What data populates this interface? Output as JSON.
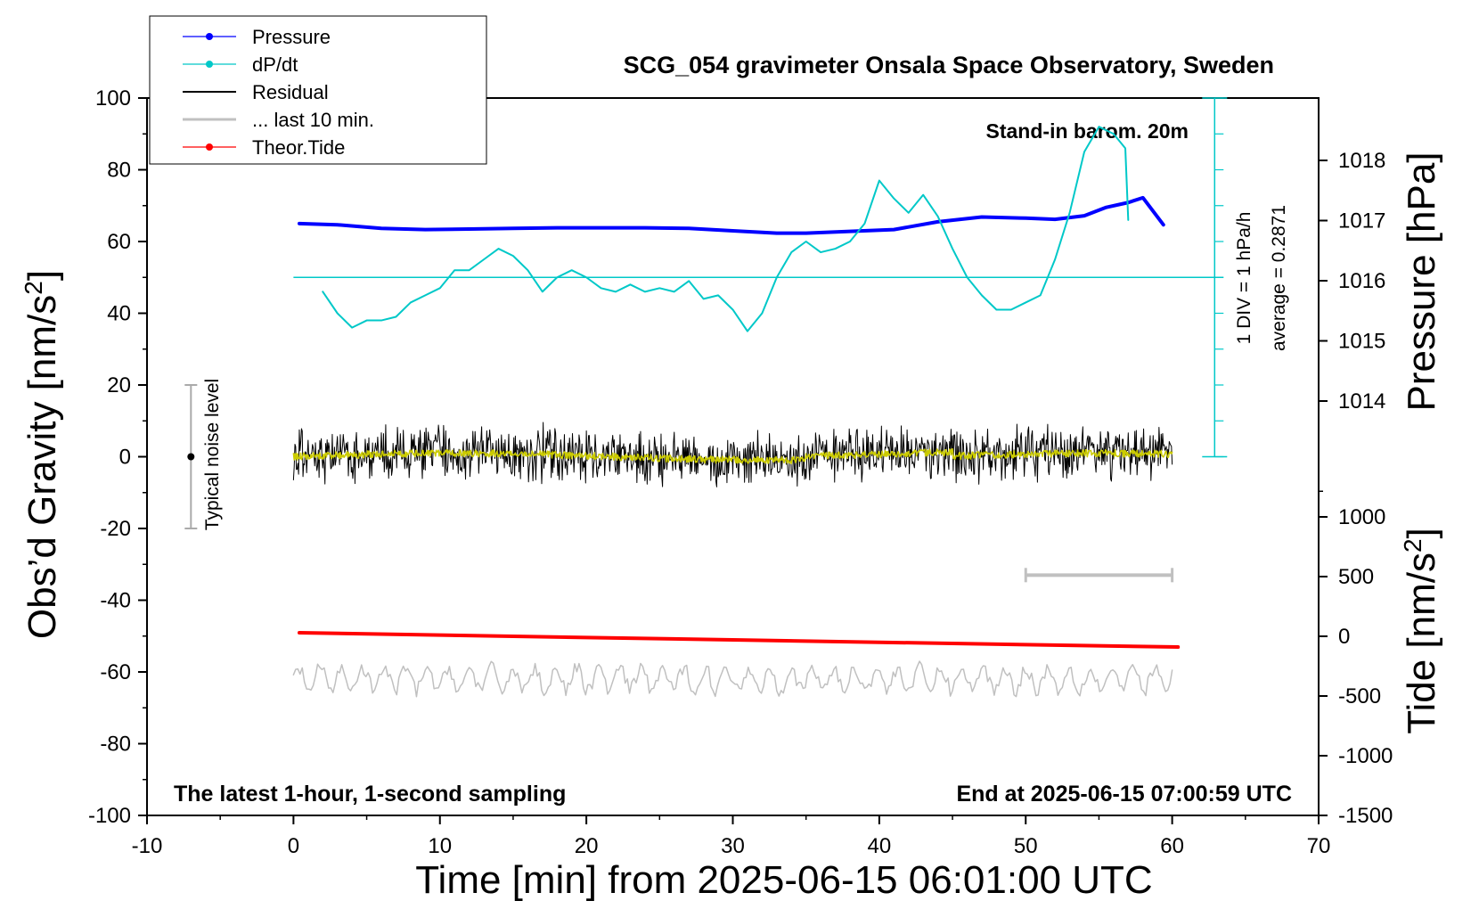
{
  "chart_data": {
    "type": "line",
    "title": "SCG_054 gravimeter Onsala Space Observatory, Sweden",
    "xlabel": "Time [min] from 2025-06-15 06:01:00 UTC",
    "ylabel_left": "Obs’d Gravity [nm/s²]",
    "ylabel_pressure": "Pressure [hPa]",
    "ylabel_tide": "Tide [nm/s²]",
    "xlim": [
      -10,
      70
    ],
    "ylim": [
      -100,
      100
    ],
    "pressure_lim": [
      1012,
      1018.8
    ],
    "tide_lim": [
      -1500,
      1000
    ],
    "grid": false,
    "legend_position": "top-left",
    "x_ticks": [
      -10,
      0,
      10,
      20,
      30,
      40,
      50,
      60,
      70
    ],
    "y_ticks": [
      100,
      80,
      60,
      40,
      20,
      0,
      -20,
      -40,
      -60,
      -80,
      -100
    ],
    "pressure_ticks": [
      1018,
      1017,
      1016,
      1015,
      1014
    ],
    "tide_ticks": [
      1000,
      500,
      0,
      -500,
      -1000,
      -1500
    ],
    "annotations": {
      "stand_in": "Stand-in barom. 20m",
      "div": "1 DIV = 1 hPa/h",
      "average": "average = 0.2871",
      "noise": "Typical noise level",
      "latest": "The latest 1-hour, 1-second sampling",
      "end": "End at 2025-06-15 07:00:59 UTC"
    },
    "legend": [
      {
        "name": "Pressure",
        "color": "#0000ff",
        "marker": true
      },
      {
        "name": "dP/dt",
        "color": "#00c8c8",
        "marker": true
      },
      {
        "name": "Residual",
        "color": "#000000",
        "marker": false
      },
      {
        "name": "... last 10 min.",
        "color": "#c0c0c0",
        "marker": false
      },
      {
        "name": "Theor.Tide",
        "color": "#ff0000",
        "marker": true
      }
    ],
    "series": [
      {
        "name": "Pressure",
        "axis": "pressure",
        "color": "#0000ff",
        "x": [
          0.4,
          3,
          6,
          9,
          12,
          15,
          18,
          21,
          24,
          27,
          30,
          33,
          35,
          38,
          41,
          44,
          47,
          50,
          52,
          54,
          55.5,
          57,
          58,
          59.4
        ],
        "values": [
          1016.95,
          1016.93,
          1016.87,
          1016.85,
          1016.86,
          1016.87,
          1016.88,
          1016.88,
          1016.88,
          1016.87,
          1016.83,
          1016.79,
          1016.79,
          1016.82,
          1016.85,
          1016.98,
          1017.06,
          1017.04,
          1017.02,
          1017.08,
          1017.22,
          1017.3,
          1017.38,
          1016.93
        ]
      },
      {
        "name": "dP/dt",
        "axis": "gravity",
        "color": "#00c8c8",
        "x": [
          2,
          3,
          4,
          5,
          6,
          7,
          8,
          9,
          10,
          11,
          12,
          13,
          14,
          15,
          16,
          17,
          18,
          19,
          20,
          21,
          22,
          23,
          24,
          25,
          26,
          27,
          28,
          29,
          30,
          31,
          32,
          33,
          34,
          35,
          36,
          37,
          38,
          39,
          40,
          41,
          42,
          43,
          44,
          45,
          46,
          47,
          48,
          49,
          50,
          51,
          52,
          53,
          54,
          55,
          56,
          56.8,
          57
        ],
        "values": [
          46,
          40,
          36,
          38,
          38,
          39,
          43,
          45,
          47,
          52,
          52,
          55,
          58,
          56,
          52,
          46,
          50,
          52,
          50,
          47,
          46,
          48,
          46,
          47,
          46,
          49,
          44,
          45,
          41,
          35,
          40,
          50,
          57,
          60,
          57,
          58,
          60,
          65,
          77,
          72,
          68,
          73,
          67,
          58,
          50,
          45,
          41,
          41,
          43,
          45,
          55,
          68,
          85,
          92,
          90,
          86,
          66
        ]
      },
      {
        "name": "Residual",
        "axis": "gravity",
        "color": "#000000",
        "x_range": [
          0,
          60
        ],
        "mean": 0,
        "amplitude": 6
      },
      {
        "name": "... last 10 min.",
        "axis": "gravity",
        "color": "#c0c0c0",
        "x": [
          50,
          60
        ],
        "values": [
          -33,
          -33
        ]
      },
      {
        "name": "Theor.Tide",
        "axis": "tide",
        "color": "#ff0000",
        "x": [
          0.4,
          10,
          20,
          30,
          40,
          50,
          60.4
        ],
        "values": [
          30,
          10,
          -10,
          -30,
          -50,
          -70,
          -90
        ]
      },
      {
        "name": "Tide residual",
        "axis": "gravity",
        "color": "#c0c0c0",
        "x_range": [
          0,
          60
        ],
        "mean": -62,
        "amplitude": 3
      }
    ]
  },
  "colors": {
    "pressure": "#0000ff",
    "dpdt": "#00c8c8",
    "residual": "#000000",
    "smoothed": "#cccc00",
    "last10": "#c0c0c0",
    "tide": "#ff0000"
  }
}
